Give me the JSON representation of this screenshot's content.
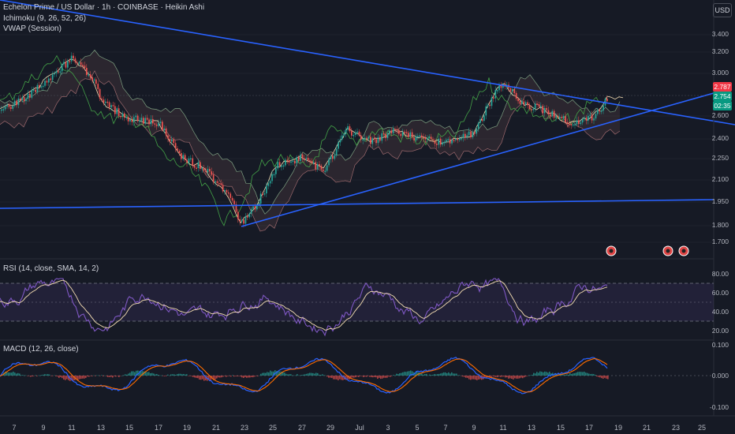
{
  "header": {
    "symbol_line": "Echelon Prime / US Dollar · 1h · COINBASE · Heikin Ashi",
    "ichimoku_label": "Ichimoku (9, 26, 52, 26)",
    "vwap_label": "VWAP (Session)",
    "currency_button": "USD"
  },
  "price_axis": {
    "labels": [
      "3.400",
      "3.200",
      "3.000",
      "2.600",
      "2.400",
      "2.250",
      "2.100",
      "1.950",
      "1.800",
      "1.700"
    ],
    "last_price_tag": "2.787",
    "current_price_tag": "2.754",
    "countdown_tag": "02:35"
  },
  "rsi_panel": {
    "label": "RSI (14, close, SMA, 14, 2)",
    "axis_labels": [
      "80.00",
      "60.00",
      "40.00",
      "20.00"
    ]
  },
  "macd_panel": {
    "label": "MACD (12, 26, close)",
    "axis_labels": [
      "0.100",
      "0.000",
      "-0.100"
    ]
  },
  "time_axis": {
    "labels": [
      "7",
      "9",
      "11",
      "13",
      "15",
      "17",
      "19",
      "21",
      "23",
      "25",
      "27",
      "29",
      "Jul",
      "3",
      "5",
      "7",
      "9",
      "11",
      "13",
      "15",
      "17",
      "19",
      "21",
      "23",
      "25"
    ]
  },
  "colors": {
    "background": "#161a25",
    "up_candle": "#26a69a",
    "down_candle": "#ef5350",
    "trendline": "#2962ff",
    "rsi_line": "#7e57c2",
    "rsi_ma": "#f5deb3",
    "macd_line": "#2962ff",
    "signal_line": "#ff6d00"
  }
}
